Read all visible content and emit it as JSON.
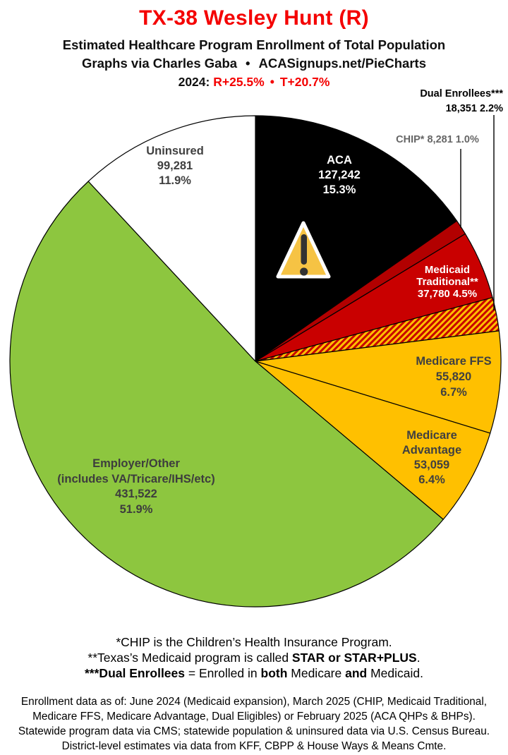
{
  "header": {
    "title": "TX-38 Wesley Hunt (R)",
    "subtitle": "Estimated Healthcare Program Enrollment of Total Population",
    "credit_left": "Graphs via Charles Gaba",
    "credit_bullet": "•",
    "credit_right": "ACASignups.net/PieCharts",
    "year_label": "2024:",
    "partisan_r": "R+25.5%",
    "partisan_bullet": "•",
    "partisan_t": "T+20.7%",
    "accent_red": "#f40000"
  },
  "chart_data": {
    "type": "pie",
    "title": "Estimated Healthcare Program Enrollment of Total Population",
    "start_angle_deg": 0,
    "direction": "clockwise",
    "center": [
      362,
      512
    ],
    "radius": 348,
    "slices": [
      {
        "id": "aca",
        "name": "ACA",
        "value": 127242,
        "pct": 15.3,
        "color": "#000000"
      },
      {
        "id": "chip",
        "name": "CHIP*",
        "value": 8281,
        "pct": 1.0,
        "color": "#b20000"
      },
      {
        "id": "medicaid-traditional",
        "name": "Medicaid Traditional**",
        "value": 37780,
        "pct": 4.5,
        "color": "#c90000"
      },
      {
        "id": "dual-enrollees",
        "name": "Dual Enrollees***",
        "value": 18351,
        "pct": 2.2,
        "color": "hatch"
      },
      {
        "id": "medicare-ffs",
        "name": "Medicare FFS",
        "value": 55820,
        "pct": 6.7,
        "color": "#ffc000"
      },
      {
        "id": "medicare-advantage",
        "name": "Medicare Advantage",
        "value": 53059,
        "pct": 6.4,
        "color": "#ffc000"
      },
      {
        "id": "employer-other",
        "name": "Employer/Other (includes VA/Tricare/IHS/etc)",
        "value": 431522,
        "pct": 51.9,
        "color": "#8dc63f"
      },
      {
        "id": "uninsured",
        "name": "Uninsured",
        "value": 99281,
        "pct": 11.9,
        "color": "#ffffff"
      }
    ],
    "hatch_colors": {
      "background": "#ffc000",
      "stripe": "#c80000"
    }
  },
  "labels": {
    "aca": [
      "ACA",
      "127,242",
      "15.3%"
    ],
    "uninsured": [
      "Uninsured",
      "99,281",
      "11.9%"
    ],
    "medicaid": [
      "Medicaid",
      "Traditional**",
      "37,780 4.5%"
    ],
    "ffs": [
      "Medicare FFS",
      "55,820",
      "6.7%"
    ],
    "adv": [
      "Medicare",
      "Advantage",
      "53,059",
      "6.4%"
    ],
    "employer": [
      "Employer/Other",
      "(includes VA/Tricare/IHS/etc)",
      "431,522",
      "51.9%"
    ],
    "chip": "CHIP* 8,281 1.0%",
    "dual_line1": "Dual Enrollees***",
    "dual_line2": "18,351 2.2%"
  },
  "footnotes": {
    "f1": "*CHIP is the Children’s Health Insurance Program.",
    "f2_pre": "**Texas’s Medicaid program is called ",
    "f2_bold": "STAR or STAR+PLUS",
    "f2_end": ".",
    "f3_bold1": "***Dual Enrollees",
    "f3_mid1": " = Enrolled in ",
    "f3_bold2": "both",
    "f3_mid2": " Medicare ",
    "f3_bold3": "and",
    "f3_end": " Medicaid."
  },
  "source": {
    "l1": "Enrollment data as of: June 2024 (Medicaid expansion), March 2025 (CHIP, Medicaid Traditional,",
    "l2": "Medicare FFS, Medicare Advantage, Dual Eligibles) or February 2025 (ACA QHPs & BHPs).",
    "l3": "Statewide program data via CMS; statewide population & uninsured data via U.S. Census Bureau.",
    "l4": "District-level estimates via data from KFF, CBPP & House Ways & Means Cmte."
  }
}
